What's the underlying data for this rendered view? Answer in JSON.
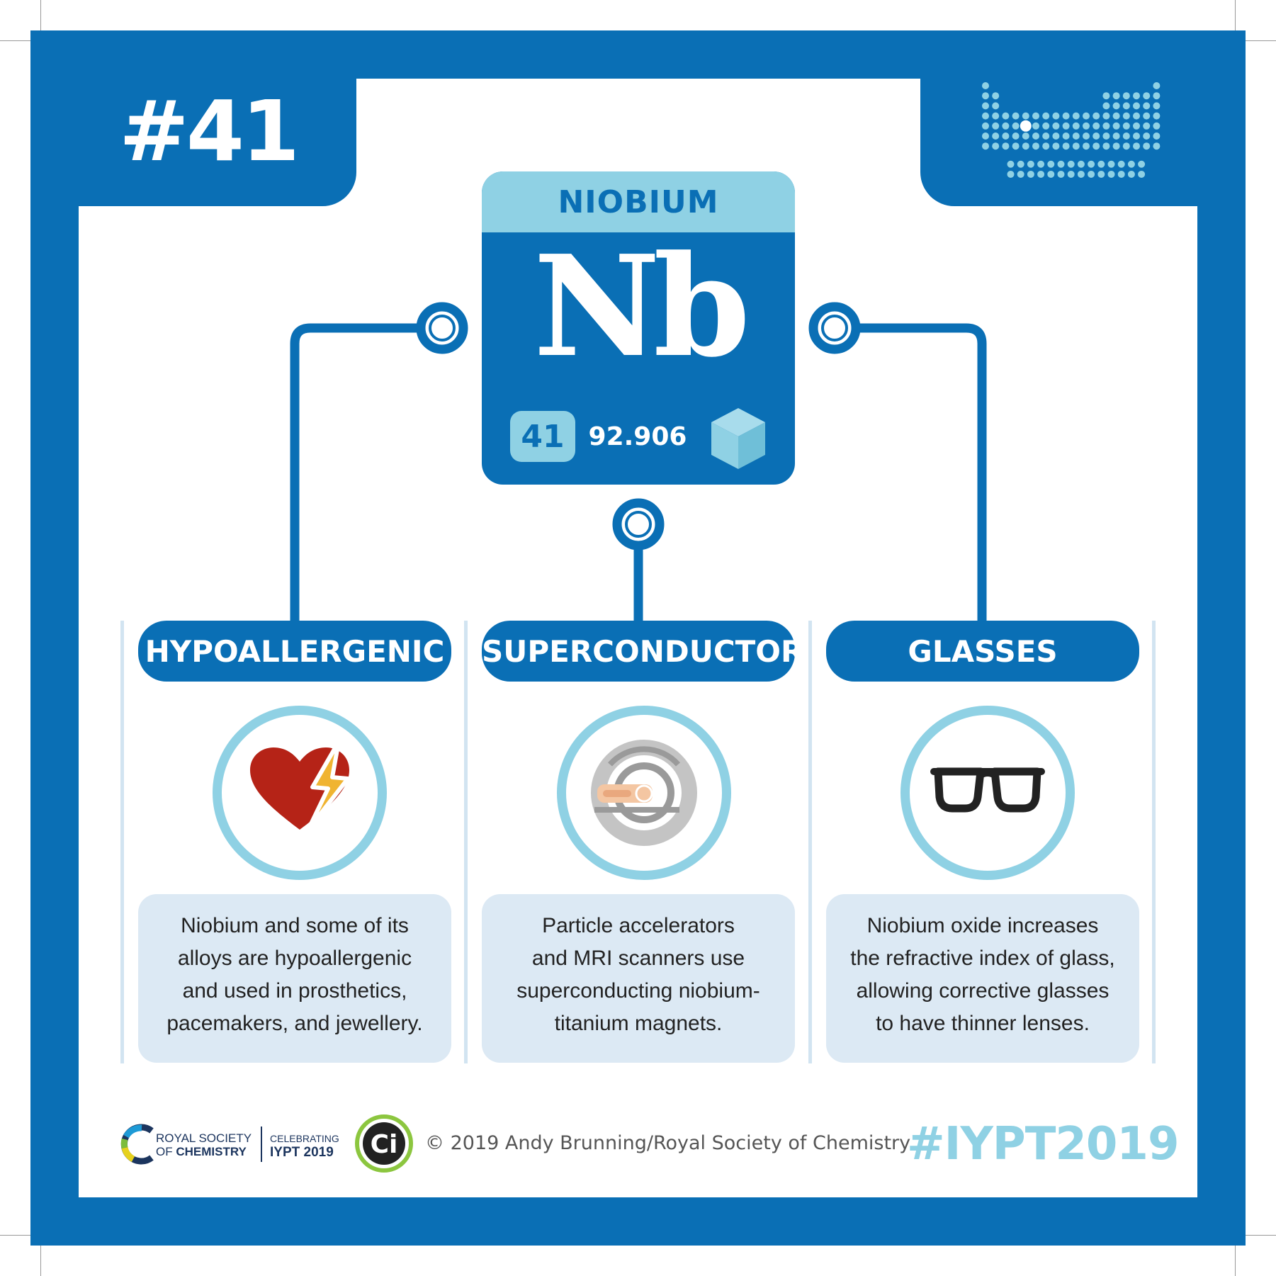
{
  "badge": {
    "number": "#41"
  },
  "element": {
    "name": "NIOBIUM",
    "symbol": "Nb",
    "atomic_number": "41",
    "atomic_mass": "92.906"
  },
  "uses": [
    {
      "title": "HYPOALLERGENIC",
      "icon": "heart-lightning-icon",
      "lines": [
        "Niobium and some of its",
        "alloys are hypoallergenic",
        "and used in prosthetics,",
        "pacemakers, and jewellery."
      ]
    },
    {
      "title": "SUPERCONDUCTOR",
      "icon": "mri-scanner-icon",
      "lines": [
        "Particle accelerators",
        "and MRI scanners use",
        "superconducting niobium-",
        "titanium magnets."
      ]
    },
    {
      "title": "GLASSES",
      "icon": "glasses-icon",
      "lines": [
        "Niobium oxide increases",
        "the refractive index of glass,",
        "allowing corrective glasses",
        "to have thinner lenses."
      ]
    }
  ],
  "footer": {
    "rsc_line1": "ROYAL SOCIETY",
    "rsc_line2_prefix": "OF ",
    "rsc_line2_bold": "CHEMISTRY",
    "celebrating": "CELEBRATING",
    "iypt": "IYPT 2019",
    "ci_label": "Ci",
    "copyright": "© 2019 Andy Brunning/Royal Society of Chemistry",
    "hashtag": "#IYPT2019"
  },
  "colors": {
    "primary_blue": "#0a6fb5",
    "light_blue": "#8fd1e4",
    "pale_blue": "#dce9f4",
    "heart_red": "#b52317",
    "bolt_yellow": "#f0b431"
  }
}
